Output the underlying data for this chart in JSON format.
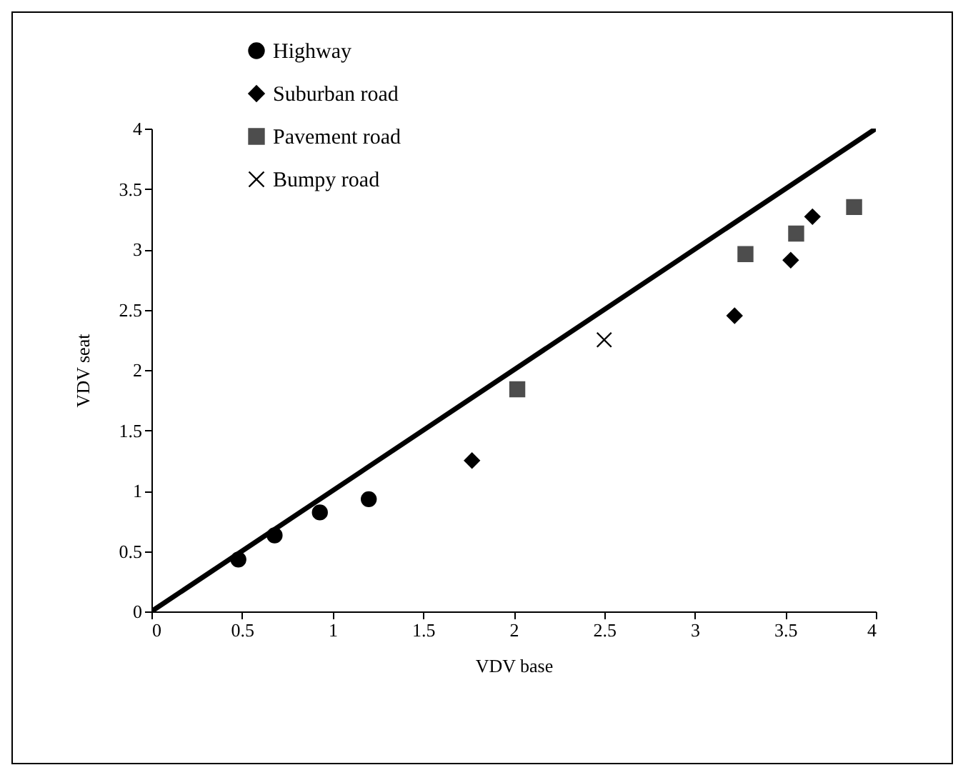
{
  "chart_data": {
    "type": "scatter",
    "xlabel": "VDV base",
    "ylabel": "VDV seat",
    "xlim": [
      0,
      4
    ],
    "ylim": [
      0,
      4
    ],
    "xticks": [
      0,
      0.5,
      1,
      1.5,
      2,
      2.5,
      3,
      3.5,
      4
    ],
    "yticks": [
      0,
      0.5,
      1,
      1.5,
      2,
      2.5,
      3,
      3.5,
      4
    ],
    "grid": false,
    "legend": "top left",
    "series": [
      {
        "name": "Highway",
        "color": "#000000",
        "marker": "circle",
        "x": [
          0.48,
          0.68,
          0.93,
          1.2
        ],
        "values": [
          0.43,
          0.63,
          0.82,
          0.93
        ]
      },
      {
        "name": "Suburban road",
        "color": "#000000",
        "marker": "diamond",
        "x": [
          1.77,
          3.22,
          3.53,
          3.65
        ],
        "values": [
          1.25,
          2.45,
          2.91,
          3.27
        ]
      },
      {
        "name": "Pavement road",
        "color": "#4d4d4d",
        "marker": "square",
        "x": [
          2.02,
          3.28,
          3.56,
          3.88
        ],
        "values": [
          1.84,
          2.96,
          3.13,
          3.35
        ]
      },
      {
        "name": "Bumpy road",
        "color": "#000000",
        "marker": "cross",
        "x": [
          2.5
        ],
        "values": [
          2.25
        ]
      },
      {
        "type": "line",
        "color": "#000000",
        "x": [
          0,
          4
        ],
        "values": [
          0,
          4
        ]
      }
    ]
  }
}
